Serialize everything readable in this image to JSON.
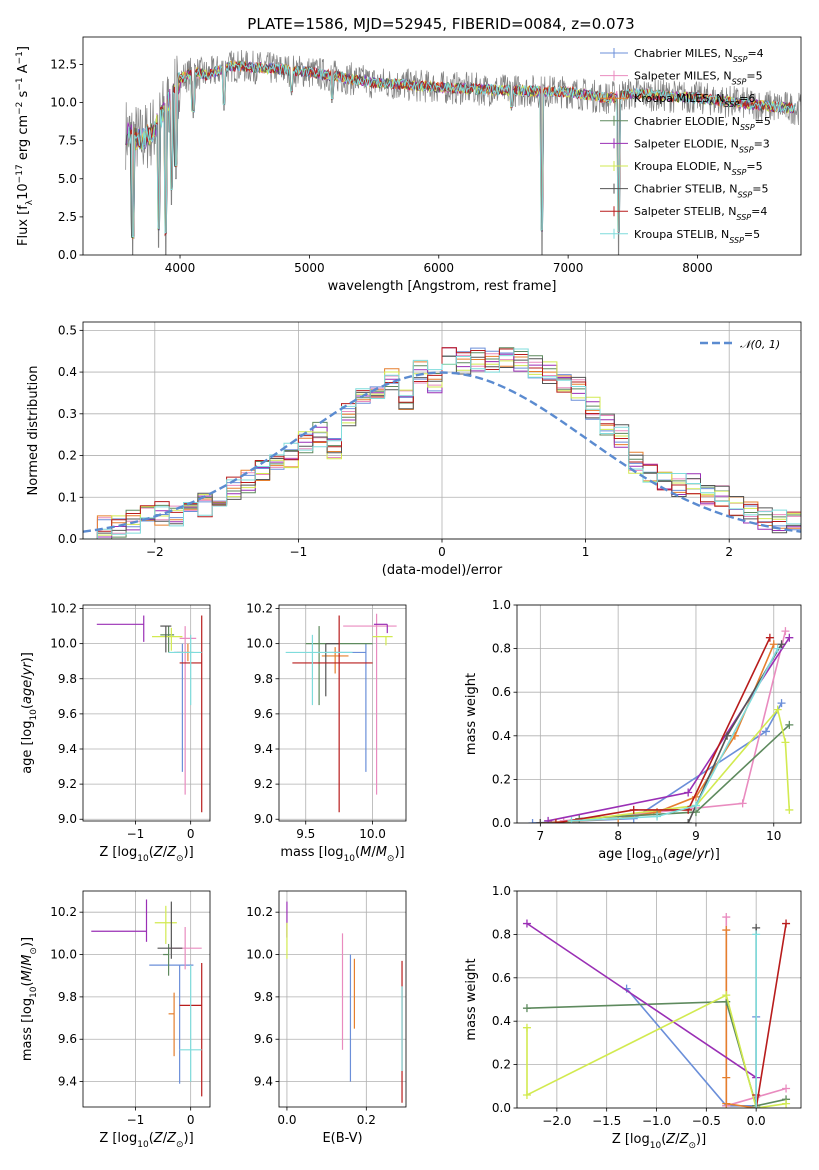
{
  "title": "PLATE=1586, MJD=52945, FIBERID=0084, z=0.073",
  "colors": {
    "Chabrier MILES": "#6b8fd9",
    "Salpeter MILES": "#e98bbf",
    "Kroupa MILES": "#e57f2e",
    "Chabrier ELODIE": "#5e8a5e",
    "Salpeter ELODIE": "#9a2fb5",
    "Kroupa ELODIE": "#d2ea50",
    "Chabrier STELIB": "#555555",
    "Salpeter STELIB": "#b81c1c",
    "Kroupa STELIB": "#7fdcdc",
    "data": "#808080",
    "normal": "#5b8bd0"
  },
  "chart_data": [
    {
      "id": "spectrum",
      "type": "line",
      "xlabel": "wavelength [Angstrom, rest frame]",
      "ylabel": "Flux [f_λ 10^-17 erg cm^-2 s^-1 A^-1]",
      "ylabel_parts": [
        "Flux [f",
        "λ",
        "10",
        "−17",
        " erg cm",
        "−2",
        " s",
        "−1",
        " A",
        "−1",
        "]"
      ],
      "xlim": [
        3250,
        8800
      ],
      "ylim": [
        0,
        14.3
      ],
      "xticks": [
        4000,
        5000,
        6000,
        7000,
        8000
      ],
      "yticks": [
        0.0,
        2.5,
        5.0,
        7.5,
        10.0,
        12.5
      ],
      "grid": false,
      "legend_position": "right",
      "series": [
        {
          "name": "Chabrier MILES, N_SSP=4",
          "base": "Chabrier MILES, N",
          "nssp": "=4"
        },
        {
          "name": "Salpeter MILES, N_SSP=5",
          "base": "Salpeter MILES, N",
          "nssp": "=5"
        },
        {
          "name": "Kroupa MILES, N_SSP=6",
          "base": "Kroupa MILES, N",
          "nssp": "=6"
        },
        {
          "name": "Chabrier ELODIE, N_SSP=5",
          "base": "Chabrier ELODIE, N",
          "nssp": "=5"
        },
        {
          "name": "Salpeter ELODIE, N_SSP=3",
          "base": "Salpeter ELODIE, N",
          "nssp": "=3"
        },
        {
          "name": "Kroupa ELODIE, N_SSP=5",
          "base": "Kroupa ELODIE, N",
          "nssp": "=5"
        },
        {
          "name": "Chabrier STELIB, N_SSP=5",
          "base": "Chabrier STELIB, N",
          "nssp": "=5"
        },
        {
          "name": "Salpeter STELIB, N_SSP=4",
          "base": "Salpeter STELIB, N",
          "nssp": "=4"
        },
        {
          "name": "Kroupa STELIB, N_SSP=5",
          "base": "Kroupa STELIB, N",
          "nssp": "=5"
        }
      ],
      "ssp_subscript": "SSP",
      "continuum": {
        "x": [
          3580,
          3700,
          3800,
          3900,
          4000,
          4100,
          4200,
          4400,
          4600,
          5000,
          5500,
          6000,
          6500,
          7000,
          7300,
          7500,
          8000,
          8500,
          8800
        ],
        "y": [
          8.0,
          7.5,
          8.2,
          9.8,
          11.5,
          12.0,
          11.8,
          12.4,
          12.3,
          12.0,
          11.3,
          11.0,
          10.8,
          10.7,
          10.3,
          10.6,
          10.3,
          9.8,
          9.6
        ]
      },
      "absorption_lines": [
        {
          "x": 3635,
          "y": 0.0
        },
        {
          "x": 3835,
          "y": 0.5
        },
        {
          "x": 3889,
          "y": 0.0
        },
        {
          "x": 3933,
          "y": 3.3
        },
        {
          "x": 3968,
          "y": 5.0
        },
        {
          "x": 4101,
          "y": 9.0
        },
        {
          "x": 4340,
          "y": 9.5
        },
        {
          "x": 4861,
          "y": 10.5
        },
        {
          "x": 5175,
          "y": 10.0
        },
        {
          "x": 6563,
          "y": 9.5
        },
        {
          "x": 6797,
          "y": 0.0
        },
        {
          "x": 7390,
          "y": 0.0
        }
      ]
    },
    {
      "id": "residuals",
      "type": "line",
      "xlabel": "(data-model)/error",
      "ylabel": "Normed distribution",
      "xlim": [
        -2.5,
        2.5
      ],
      "ylim": [
        0,
        0.52
      ],
      "xticks": [
        -2,
        -1,
        0,
        1,
        2
      ],
      "yticks": [
        0.0,
        0.1,
        0.2,
        0.3,
        0.4,
        0.5
      ],
      "grid": true,
      "legend_position": "top-right",
      "legend_label": "𝒩(0, 1)",
      "bin_edges": [
        -2.5,
        -2.4,
        -2.3,
        -2.2,
        -2.1,
        -2.0,
        -1.9,
        -1.8,
        -1.7,
        -1.6,
        -1.5,
        -1.4,
        -1.3,
        -1.2,
        -1.1,
        -1.0,
        -0.9,
        -0.8,
        -0.7,
        -0.6,
        -0.5,
        -0.4,
        -0.3,
        -0.2,
        -0.1,
        0.0,
        0.1,
        0.2,
        0.3,
        0.4,
        0.5,
        0.6,
        0.7,
        0.8,
        0.9,
        1.0,
        1.1,
        1.2,
        1.3,
        1.4,
        1.5,
        1.6,
        1.7,
        1.8,
        1.9,
        2.0,
        2.1,
        2.2,
        2.3,
        2.4,
        2.5
      ],
      "hist_base": [
        0.02,
        0.03,
        0.03,
        0.04,
        0.05,
        0.06,
        0.05,
        0.07,
        0.08,
        0.1,
        0.12,
        0.14,
        0.17,
        0.18,
        0.2,
        0.23,
        0.25,
        0.22,
        0.3,
        0.33,
        0.35,
        0.38,
        0.34,
        0.4,
        0.38,
        0.44,
        0.42,
        0.43,
        0.42,
        0.44,
        0.43,
        0.41,
        0.4,
        0.38,
        0.36,
        0.31,
        0.27,
        0.25,
        0.18,
        0.15,
        0.14,
        0.13,
        0.13,
        0.11,
        0.1,
        0.08,
        0.06,
        0.05,
        0.04,
        0.04
      ]
    },
    {
      "id": "age-vs-Z",
      "type": "scatter",
      "xlabel": "Z [log10(Z/Z☉)]",
      "ylabel": "age  [log10(age/yr)]",
      "xlim": [
        -1.95,
        0.35
      ],
      "ylim": [
        8.99,
        10.22
      ],
      "xticks": [
        -1,
        0
      ],
      "yticks": [
        9.0,
        9.2,
        9.4,
        9.6,
        9.8,
        10.0,
        10.2
      ],
      "grid": true,
      "points": [
        {
          "s": 0,
          "x": -0.15,
          "y": 9.95,
          "xerr": [
            0.15,
            0.0
          ],
          "yerr": [
            0.68,
            0.05
          ]
        },
        {
          "s": 1,
          "x": -0.1,
          "y": 10.03,
          "xerr": [
            0.1,
            0.2
          ],
          "yerr": [
            0.89,
            0.07
          ]
        },
        {
          "s": 2,
          "x": -0.05,
          "y": 9.95,
          "xerr": [
            0.2,
            0.1
          ],
          "yerr": [
            0.05,
            0.05
          ]
        },
        {
          "s": 3,
          "x": -0.4,
          "y": 10.05,
          "xerr": [
            0.15,
            0.1
          ],
          "yerr": [
            0.1,
            0.05
          ]
        },
        {
          "s": 4,
          "x": -0.85,
          "y": 10.11,
          "xerr": [
            0.85,
            0.0
          ],
          "yerr": [
            0.1,
            0.05
          ]
        },
        {
          "s": 5,
          "x": -0.35,
          "y": 10.04,
          "xerr": [
            0.35,
            0.2
          ],
          "yerr": [
            0.08,
            0.05
          ]
        },
        {
          "s": 6,
          "x": -0.45,
          "y": 10.1,
          "xerr": [
            0.1,
            0.1
          ],
          "yerr": [
            0.15,
            0.0
          ]
        },
        {
          "s": 7,
          "x": 0.2,
          "y": 9.89,
          "xerr": [
            0.4,
            0.0
          ],
          "yerr": [
            0.85,
            0.27
          ]
        },
        {
          "s": 8,
          "x": 0.0,
          "y": 9.95,
          "xerr": [
            0.4,
            0.2
          ],
          "yerr": [
            0.3,
            0.1
          ]
        }
      ]
    },
    {
      "id": "age-vs-mass",
      "type": "scatter",
      "xlabel": "mass [log10(M/M☉)]",
      "ylabel": "",
      "xlim": [
        9.3,
        10.25
      ],
      "ylim": [
        8.99,
        10.22
      ],
      "xticks": [
        9.5,
        10.0
      ],
      "yticks": [
        9.0,
        9.2,
        9.4,
        9.6,
        9.8,
        10.0,
        10.2
      ],
      "grid": true,
      "points": [
        {
          "s": 0,
          "x": 9.95,
          "y": 9.95,
          "xerr": [
            0.3,
            0.0
          ],
          "yerr": [
            0.68,
            0.05
          ]
        },
        {
          "s": 1,
          "x": 10.03,
          "y": 10.1,
          "xerr": [
            0.25,
            0.15
          ],
          "yerr": [
            0.96,
            0.07
          ]
        },
        {
          "s": 2,
          "x": 9.72,
          "y": 9.93,
          "xerr": [
            0.1,
            0.1
          ],
          "yerr": [
            0.1,
            0.05
          ]
        },
        {
          "s": 3,
          "x": 9.6,
          "y": 10.0,
          "xerr": [
            0.1,
            0.4
          ],
          "yerr": [
            0.35,
            0.1
          ]
        },
        {
          "s": 4,
          "x": 10.11,
          "y": 10.11,
          "xerr": [
            0.1,
            0.0
          ],
          "yerr": [
            0.05,
            0.0
          ]
        },
        {
          "s": 5,
          "x": 10.1,
          "y": 10.04,
          "xerr": [
            0.1,
            0.05
          ],
          "yerr": [
            0.05,
            0.0
          ]
        },
        {
          "s": 6,
          "x": 9.65,
          "y": 10.0,
          "xerr": [
            0.0,
            0.1
          ],
          "yerr": [
            0.3,
            0.0
          ]
        },
        {
          "s": 7,
          "x": 9.75,
          "y": 9.89,
          "xerr": [
            0.35,
            0.25
          ],
          "yerr": [
            0.85,
            0.27
          ]
        },
        {
          "s": 8,
          "x": 9.55,
          "y": 9.95,
          "xerr": [
            0.2,
            0.3
          ],
          "yerr": [
            0.3,
            0.1
          ]
        }
      ]
    },
    {
      "id": "mw-vs-age",
      "type": "line",
      "xlabel": "age  [log10(age/yr)]",
      "ylabel": "mass weight",
      "xlim": [
        6.7,
        10.35
      ],
      "ylim": [
        0,
        1.0
      ],
      "xticks": [
        7,
        8,
        9,
        10
      ],
      "yticks": [
        0.0,
        0.2,
        0.4,
        0.6,
        0.8,
        1.0
      ],
      "grid": true,
      "series": [
        {
          "s": 0,
          "x": [
            6.9,
            8.2,
            9.9,
            10.1
          ],
          "y": [
            0.0,
            0.02,
            0.42,
            0.55
          ]
        },
        {
          "s": 1,
          "x": [
            7.3,
            8.5,
            9.6,
            10.15
          ],
          "y": [
            0.01,
            0.05,
            0.09,
            0.88
          ]
        },
        {
          "s": 2,
          "x": [
            7.0,
            8.0,
            8.5,
            9.0,
            9.5,
            10.0
          ],
          "y": [
            0.0,
            0.02,
            0.05,
            0.12,
            0.4,
            0.82
          ]
        },
        {
          "s": 3,
          "x": [
            7.5,
            8.5,
            9.0,
            10.2
          ],
          "y": [
            0.02,
            0.04,
            0.05,
            0.45
          ]
        },
        {
          "s": 4,
          "x": [
            7.1,
            8.9,
            10.2
          ],
          "y": [
            0.01,
            0.14,
            0.85
          ]
        },
        {
          "s": 5,
          "x": [
            7.2,
            9.0,
            10.05,
            10.15,
            10.2
          ],
          "y": [
            0.0,
            0.08,
            0.52,
            0.37,
            0.06
          ]
        },
        {
          "s": 6,
          "x": [
            7.0,
            8.9,
            9.4,
            10.1
          ],
          "y": [
            0.0,
            0.0,
            0.4,
            0.82
          ]
        },
        {
          "s": 7,
          "x": [
            7.2,
            8.2,
            8.9,
            9.95
          ],
          "y": [
            0.0,
            0.06,
            0.06,
            0.85
          ]
        },
        {
          "s": 8,
          "x": [
            7.4,
            8.5,
            9.0,
            10.05
          ],
          "y": [
            0.01,
            0.03,
            0.08,
            0.8
          ]
        }
      ]
    },
    {
      "id": "mass-vs-Z",
      "type": "scatter",
      "xlabel": "Z [log10(Z/Z☉)]",
      "ylabel": "mass [log10(M/M☉)]",
      "xlim": [
        -1.95,
        0.35
      ],
      "ylim": [
        9.28,
        10.3
      ],
      "xticks": [
        -1,
        0
      ],
      "yticks": [
        9.4,
        9.6,
        9.8,
        10.0,
        10.2
      ],
      "grid": true,
      "points": [
        {
          "s": 0,
          "x": -0.2,
          "y": 9.95,
          "xerr": [
            0.55,
            0.25
          ],
          "yerr": [
            0.56,
            0.0
          ]
        },
        {
          "s": 1,
          "x": -0.1,
          "y": 10.03,
          "xerr": [
            0.3,
            0.3
          ],
          "yerr": [
            0.1,
            0.1
          ]
        },
        {
          "s": 2,
          "x": -0.3,
          "y": 9.72,
          "xerr": [
            0.1,
            0.0
          ],
          "yerr": [
            0.2,
            0.1
          ]
        },
        {
          "s": 3,
          "x": -0.4,
          "y": 10.0,
          "xerr": [
            0.1,
            0.0
          ],
          "yerr": [
            0.1,
            0.05
          ]
        },
        {
          "s": 4,
          "x": -0.8,
          "y": 10.11,
          "xerr": [
            1.0,
            0.0
          ],
          "yerr": [
            0.05,
            0.15
          ]
        },
        {
          "s": 5,
          "x": -0.45,
          "y": 10.15,
          "xerr": [
            0.2,
            0.2
          ],
          "yerr": [
            0.1,
            0.08
          ]
        },
        {
          "s": 6,
          "x": -0.35,
          "y": 10.03,
          "xerr": [
            0.25,
            0.2
          ],
          "yerr": [
            0.05,
            0.22
          ]
        },
        {
          "s": 7,
          "x": 0.2,
          "y": 9.76,
          "xerr": [
            0.4,
            0.0
          ],
          "yerr": [
            0.43,
            0.2
          ]
        },
        {
          "s": 8,
          "x": 0.0,
          "y": 9.55,
          "xerr": [
            0.2,
            0.2
          ],
          "yerr": [
            0.15,
            0.4
          ]
        }
      ]
    },
    {
      "id": "mass-vs-EBV",
      "type": "scatter",
      "xlabel": "E(B-V)",
      "ylabel": "",
      "xlim": [
        -0.02,
        0.3
      ],
      "ylim": [
        9.28,
        10.3
      ],
      "xticks": [
        0.0,
        0.2
      ],
      "yticks": [
        9.4,
        9.6,
        9.8,
        10.0,
        10.2
      ],
      "grid": true,
      "points": [
        {
          "s": 0,
          "x": 0.16,
          "y": 9.7,
          "xerr": [
            0,
            0
          ],
          "yerr": [
            0.3,
            0.3
          ]
        },
        {
          "s": 1,
          "x": 0.14,
          "y": 9.85,
          "xerr": [
            0,
            0
          ],
          "yerr": [
            0.3,
            0.25
          ]
        },
        {
          "s": 2,
          "x": 0.17,
          "y": 9.8,
          "xerr": [
            0,
            0
          ],
          "yerr": [
            0.15,
            0.18
          ]
        },
        {
          "s": 4,
          "x": 0.0,
          "y": 10.13,
          "xerr": [
            0,
            0
          ],
          "yerr": [
            0.05,
            0.12
          ]
        },
        {
          "s": 5,
          "x": 0.0,
          "y": 10.1,
          "xerr": [
            0,
            0
          ],
          "yerr": [
            0.12,
            0.05
          ]
        },
        {
          "s": 7,
          "x": 0.29,
          "y": 9.6,
          "xerr": [
            0,
            0
          ],
          "yerr": [
            0.3,
            0.37
          ]
        },
        {
          "s": 8,
          "x": 0.29,
          "y": 9.6,
          "xerr": [
            0,
            0
          ],
          "yerr": [
            0.15,
            0.25
          ]
        }
      ]
    },
    {
      "id": "mw-vs-Z",
      "type": "line",
      "xlabel": "Z [log10(Z/Z☉)]",
      "ylabel": "mass weight",
      "xlim": [
        -2.4,
        0.45
      ],
      "ylim": [
        0,
        1.0
      ],
      "xticks": [
        -2.0,
        -1.5,
        -1.0,
        -0.5,
        0.0
      ],
      "yticks": [
        0.0,
        0.2,
        0.4,
        0.6,
        0.8,
        1.0
      ],
      "grid": true,
      "series": [
        {
          "s": 0,
          "x": [
            -1.3,
            -0.3,
            0.0,
            0.0
          ],
          "y": [
            0.55,
            0.01,
            0.01,
            0.42
          ]
        },
        {
          "s": 1,
          "x": [
            -0.3,
            -0.3,
            0.0,
            0.3
          ],
          "y": [
            0.88,
            0.01,
            0.05,
            0.09
          ]
        },
        {
          "s": 2,
          "x": [
            -0.3,
            -0.3,
            -0.3,
            0.0
          ],
          "y": [
            0.82,
            0.14,
            0.02,
            0.0
          ]
        },
        {
          "s": 3,
          "x": [
            -2.3,
            -0.3,
            0.0,
            0.3
          ],
          "y": [
            0.46,
            0.49,
            0.01,
            0.04
          ]
        },
        {
          "s": 4,
          "x": [
            -2.3,
            0.0
          ],
          "y": [
            0.85,
            0.14
          ]
        },
        {
          "s": 5,
          "x": [
            -2.3,
            -2.3,
            -0.3,
            0.0,
            0.3
          ],
          "y": [
            0.37,
            0.06,
            0.52,
            0.0,
            0.02
          ]
        },
        {
          "s": 6,
          "x": [
            0.0,
            0.0
          ],
          "y": [
            0.83,
            0.0
          ]
        },
        {
          "s": 7,
          "x": [
            0.0,
            0.0,
            0.3
          ],
          "y": [
            0.06,
            0.0,
            0.85
          ]
        },
        {
          "s": 8,
          "x": [
            0.0,
            0.0
          ],
          "y": [
            0.8,
            0.0
          ]
        }
      ]
    }
  ]
}
